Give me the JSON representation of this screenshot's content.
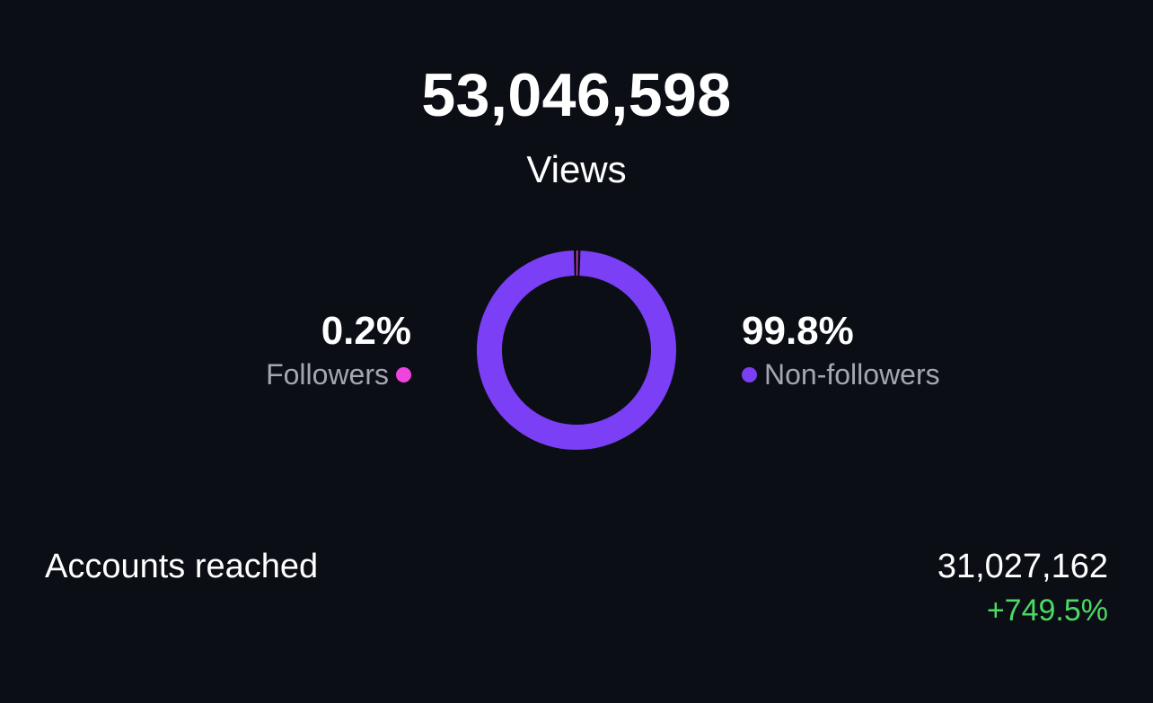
{
  "views": {
    "total": "53,046,598",
    "label": "Views"
  },
  "breakdown": {
    "followers": {
      "percent": "0.2%",
      "label": "Followers",
      "fraction": 0.002,
      "color": "#f044df"
    },
    "non_followers": {
      "percent": "99.8%",
      "label": "Non-followers",
      "fraction": 0.998,
      "color": "#7b3ff5"
    }
  },
  "accounts_reached": {
    "label": "Accounts reached",
    "value": "31,027,162",
    "change": "+749.5%",
    "change_color": "#4cd964"
  }
}
